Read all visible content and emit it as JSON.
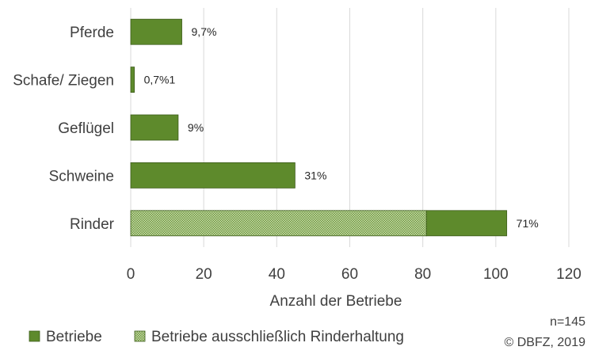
{
  "chart_data": {
    "type": "bar",
    "orientation": "horizontal",
    "stacked": true,
    "categories": [
      "Pferde",
      "Schafe/ Ziegen",
      "Geflügel",
      "Schweine",
      "Rinder"
    ],
    "series": [
      {
        "name": "Betriebe",
        "values": [
          14,
          1,
          13,
          45,
          22
        ],
        "color": "#5e8a2c",
        "pattern": "solid"
      },
      {
        "name": "Betriebe ausschließlich Rinderhaltung",
        "values": [
          0,
          0,
          0,
          0,
          81
        ],
        "color": "#5e8a2c",
        "pattern": "dotted"
      }
    ],
    "data_labels": [
      "9,7%",
      "0,7%1",
      "9%",
      "31%",
      "71%"
    ],
    "x_ticks": [
      0,
      20,
      40,
      60,
      80,
      100,
      120
    ],
    "xlim": [
      0,
      120
    ],
    "xlabel": "Anzahl der Betriebe",
    "grid": true,
    "legend_position": "bottom-left"
  },
  "notes": {
    "sample_size": "n=145",
    "copyright": "© DBFZ, 2019"
  }
}
